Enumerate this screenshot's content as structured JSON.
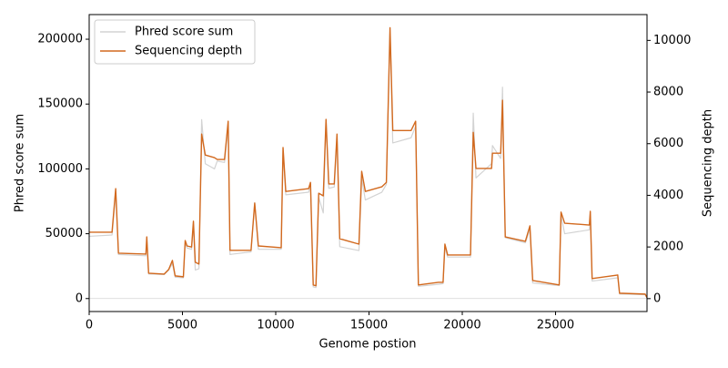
{
  "chart_data": {
    "type": "line",
    "xlabel": "Genome postion",
    "ylabel": "Phred score sum",
    "y2label": "Sequencing depth",
    "x": [
      0,
      1225,
      1422,
      1569,
      3039,
      3088,
      3186,
      4020,
      4265,
      4461,
      4608,
      5049,
      5147,
      5245,
      5490,
      5588,
      5686,
      5882,
      6029,
      6225,
      6716,
      6863,
      7255,
      7451,
      7549,
      8676,
      8873,
      9069,
      10294,
      10392,
      10539,
      11765,
      11863,
      12010,
      12157,
      12304,
      12549,
      12696,
      12843,
      13137,
      13284,
      13431,
      14461,
      14608,
      14804,
      15686,
      15931,
      16127,
      16275,
      17255,
      17500,
      17647,
      18725,
      18971,
      19069,
      19216,
      20441,
      20588,
      20735,
      21569,
      21618,
      22059,
      22157,
      22304,
      23382,
      23627,
      23775,
      25196,
      25294,
      25490,
      26814,
      26863,
      26961,
      28333,
      28431,
      29804,
      29903
    ],
    "series": [
      {
        "name": "Phred score sum",
        "color": "#d3d3d3",
        "axis": "y",
        "values": [
          48000,
          49000,
          82000,
          34000,
          33000,
          45000,
          19000,
          18500,
          22000,
          27000,
          16500,
          16000,
          43000,
          39000,
          38000,
          57000,
          22000,
          23000,
          138000,
          104000,
          100000,
          106000,
          105000,
          133000,
          34000,
          36000,
          74000,
          38000,
          38000,
          115000,
          80000,
          82000,
          88000,
          9000,
          8500,
          78000,
          66000,
          137000,
          85000,
          86000,
          124000,
          40000,
          37000,
          93000,
          76000,
          82000,
          88000,
          207000,
          120000,
          124000,
          133000,
          9500,
          11000,
          11500,
          40000,
          32000,
          32000,
          143000,
          93000,
          104000,
          118000,
          108000,
          163000,
          47000,
          43000,
          53000,
          12000,
          10000,
          64000,
          50000,
          53000,
          62000,
          13500,
          16000,
          3500,
          3000,
          500
        ]
      },
      {
        "name": "Sequencing depth",
        "color": "#d2691e",
        "axis": "y2",
        "values": [
          2570,
          2570,
          4260,
          1760,
          1725,
          2390,
          985,
          950,
          1130,
          1480,
          880,
          845,
          2250,
          2040,
          2000,
          3000,
          1410,
          1340,
          6370,
          5560,
          5460,
          5390,
          5390,
          6870,
          1870,
          1870,
          3700,
          2040,
          1970,
          5850,
          4150,
          4260,
          4500,
          530,
          500,
          4080,
          3980,
          6940,
          4440,
          4440,
          6370,
          2320,
          2110,
          4930,
          4150,
          4330,
          4500,
          10490,
          6510,
          6510,
          6870,
          530,
          630,
          630,
          2110,
          1690,
          1690,
          6440,
          5040,
          5040,
          5630,
          5630,
          7680,
          2390,
          2220,
          2820,
          700,
          530,
          3350,
          2920,
          2850,
          3380,
          775,
          915,
          210,
          175,
          35
        ]
      }
    ],
    "xlim": [
      0,
      29903
    ],
    "xticks": [
      0,
      5000,
      10000,
      15000,
      20000,
      25000
    ],
    "ylim": [
      -10000,
      219000
    ],
    "yticks": [
      0,
      50000,
      100000,
      150000,
      200000
    ],
    "y2lim": [
      -500,
      11000
    ],
    "y2ticks": [
      0,
      2000,
      4000,
      6000,
      8000,
      10000
    ],
    "legend": "upper left"
  }
}
